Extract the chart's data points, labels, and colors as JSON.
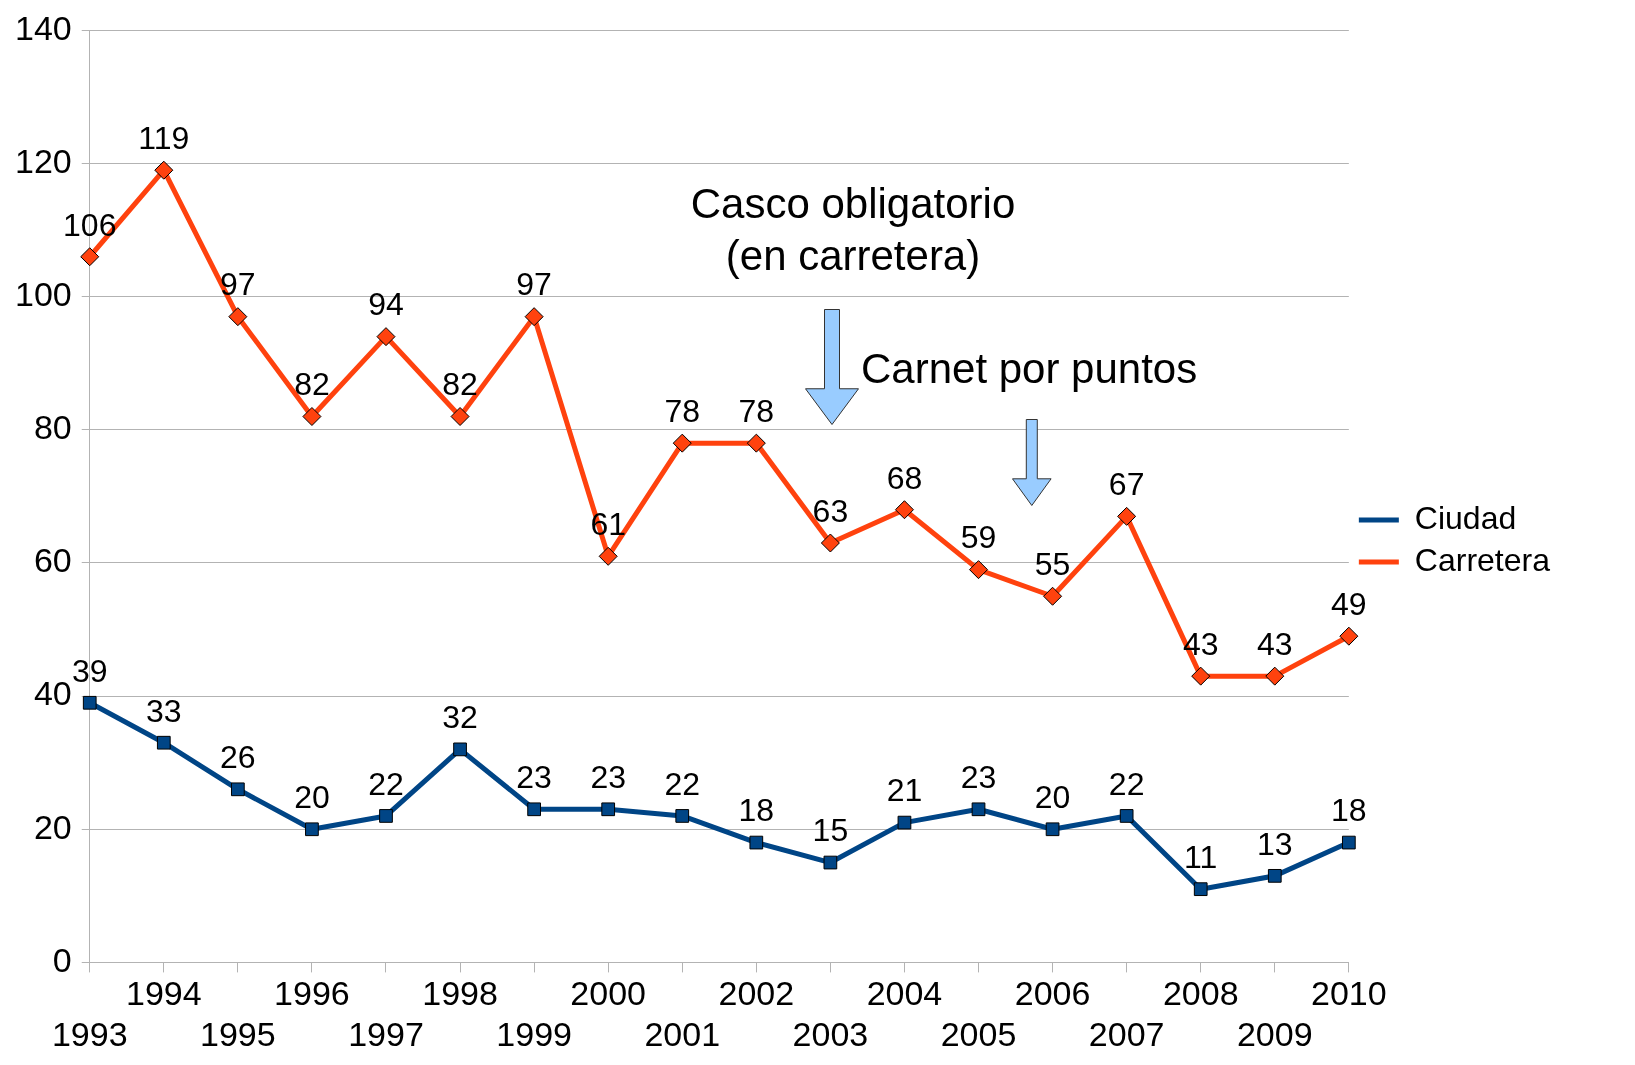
{
  "chart_data": {
    "type": "line",
    "categories": [
      "1993",
      "1994",
      "1995",
      "1996",
      "1997",
      "1998",
      "1999",
      "2000",
      "2001",
      "2002",
      "2003",
      "2004",
      "2005",
      "2006",
      "2007",
      "2008",
      "2009",
      "2010"
    ],
    "series": [
      {
        "name": "Ciudad",
        "color": "#004586",
        "marker": "square",
        "values": [
          39,
          33,
          26,
          20,
          22,
          32,
          23,
          23,
          22,
          18,
          15,
          21,
          23,
          20,
          22,
          11,
          13,
          18
        ]
      },
      {
        "name": "Carretera",
        "color": "#ff420e",
        "marker": "diamond",
        "values": [
          106,
          119,
          97,
          82,
          94,
          82,
          97,
          61,
          78,
          78,
          63,
          68,
          59,
          55,
          67,
          43,
          43,
          49
        ]
      }
    ],
    "ylim": [
      0,
      140
    ],
    "yticks": [
      0,
      20,
      40,
      60,
      80,
      100,
      120,
      140
    ],
    "grid": "y",
    "legend": "right",
    "data_labels": true,
    "line_style": "solid",
    "annotations": [
      "Casco obligatorio\n(en carretera)",
      "Carnet por puntos"
    ]
  }
}
